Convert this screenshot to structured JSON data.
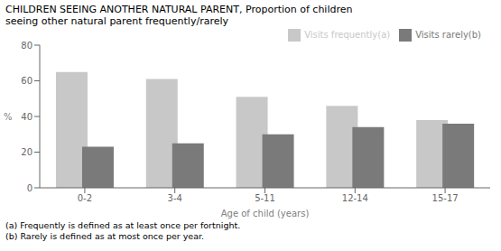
{
  "chart_data": {
    "type": "bar",
    "title": [
      "CHILDREN SEEING ANOTHER NATURAL PARENT, Proportion of children",
      "seeing other natural parent frequently/rarely"
    ],
    "categories": [
      "0-2",
      "3-4",
      "5-11",
      "12-14",
      "15-17"
    ],
    "series": [
      {
        "name": "Visits frequently(a)",
        "color": "#c8c8c8",
        "values": [
          65,
          61,
          51,
          46,
          38
        ]
      },
      {
        "name": "Visits rarely(b)",
        "color": "#7a7a7a",
        "values": [
          23,
          25,
          30,
          34,
          36
        ]
      }
    ],
    "xlabel": "Age of child (years)",
    "ylabel": "%",
    "ylim": [
      0,
      80
    ],
    "yticks": [
      0,
      20,
      40,
      60,
      80
    ],
    "grid": false,
    "legend": "upper right",
    "annotations": [
      "(a) Frequently is defined as at least once per fortnight.",
      "(b) Rarely is defined as at most once per year."
    ]
  }
}
